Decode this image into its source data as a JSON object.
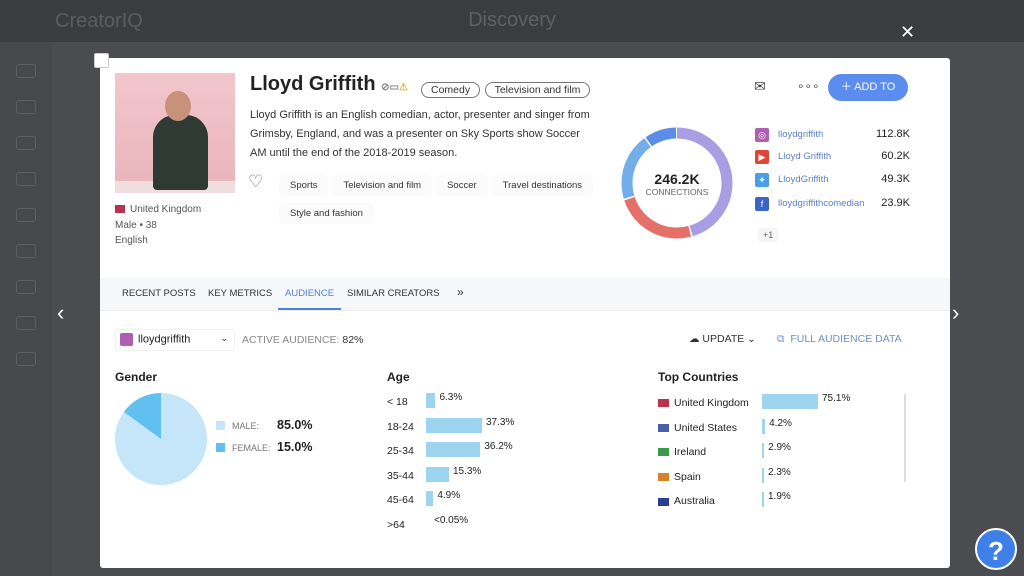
{
  "app": {
    "logo": "CreatorIQ",
    "title": "Discovery"
  },
  "profile": {
    "name": "Lloyd Griffith",
    "categories": [
      "Comedy",
      "Television and film"
    ],
    "bio": "Lloyd Griffith is an English comedian, actor, presenter and singer from Grimsby, England, and was a presenter on Sky Sports show Soccer AM until the end of the 2018-2019 season.",
    "country": "United Kingdom",
    "gender": "Male",
    "age": "38",
    "language": "English",
    "tags": [
      "Sports",
      "Television and film",
      "Soccer",
      "Travel destinations",
      "Style and fashion"
    ],
    "add_to_label": "ADD TO",
    "connections": {
      "value": "246.2K",
      "label": "CONNECTIONS"
    },
    "socials": [
      {
        "platform": "instagram",
        "handle": "lloydgriffith",
        "count": "112.8K",
        "color": "#b05fb0",
        "ring": "#a99de3",
        "share": 112.8
      },
      {
        "platform": "youtube",
        "handle": "Lloyd Griffith",
        "count": "60.2K",
        "color": "#e0453a",
        "ring": "#e5706a",
        "share": 60.2
      },
      {
        "platform": "twitter",
        "handle": "LloydGriffith",
        "count": "49.3K",
        "color": "#4a9de8",
        "ring": "#74aeea",
        "share": 49.3
      },
      {
        "platform": "facebook",
        "handle": "lloydgriffithcomedian",
        "count": "23.9K",
        "color": "#3b64c4",
        "ring": "#5a8de8",
        "share": 23.9
      }
    ],
    "more_label": "+1"
  },
  "tabs": [
    "RECENT POSTS",
    "KEY METRICS",
    "AUDIENCE",
    "SIMILAR CREATORS"
  ],
  "tabs_more": "»",
  "audience": {
    "account": "lloydgriffith",
    "active_label": "ACTIVE AUDIENCE:",
    "active_value": "82%",
    "update_label": "UPDATE",
    "full_data_label": "FULL AUDIENCE DATA",
    "gender": {
      "title": "Gender",
      "items": [
        {
          "label": "MALE:",
          "value": "85.0%",
          "pct": 85.0,
          "color": "#c4e6f8"
        },
        {
          "label": "FEMALE:",
          "value": "15.0%",
          "pct": 15.0,
          "color": "#62c0f0"
        }
      ]
    },
    "age": {
      "title": "Age",
      "items": [
        {
          "label": "< 18",
          "value": "6.3%",
          "pct": 6.3
        },
        {
          "label": "18-24",
          "value": "37.3%",
          "pct": 37.3
        },
        {
          "label": "25-34",
          "value": "36.2%",
          "pct": 36.2
        },
        {
          "label": "35-44",
          "value": "15.3%",
          "pct": 15.3
        },
        {
          "label": "45-64",
          "value": "4.9%",
          "pct": 4.9
        },
        {
          "label": ">64",
          "value": "<0.05%",
          "pct": 0
        }
      ]
    },
    "countries": {
      "title": "Top Countries",
      "items": [
        {
          "label": "United Kingdom",
          "value": "75.1%",
          "pct": 75.1,
          "flag": "#b8334a"
        },
        {
          "label": "United States",
          "value": "4.2%",
          "pct": 4.2,
          "flag": "#4a5fa8"
        },
        {
          "label": "Ireland",
          "value": "2.9%",
          "pct": 2.9,
          "flag": "#3a9a4a"
        },
        {
          "label": "Spain",
          "value": "2.3%",
          "pct": 2.3,
          "flag": "#d9822b"
        },
        {
          "label": "Australia",
          "value": "1.9%",
          "pct": 1.9,
          "flag": "#2a3f8a"
        }
      ]
    }
  }
}
